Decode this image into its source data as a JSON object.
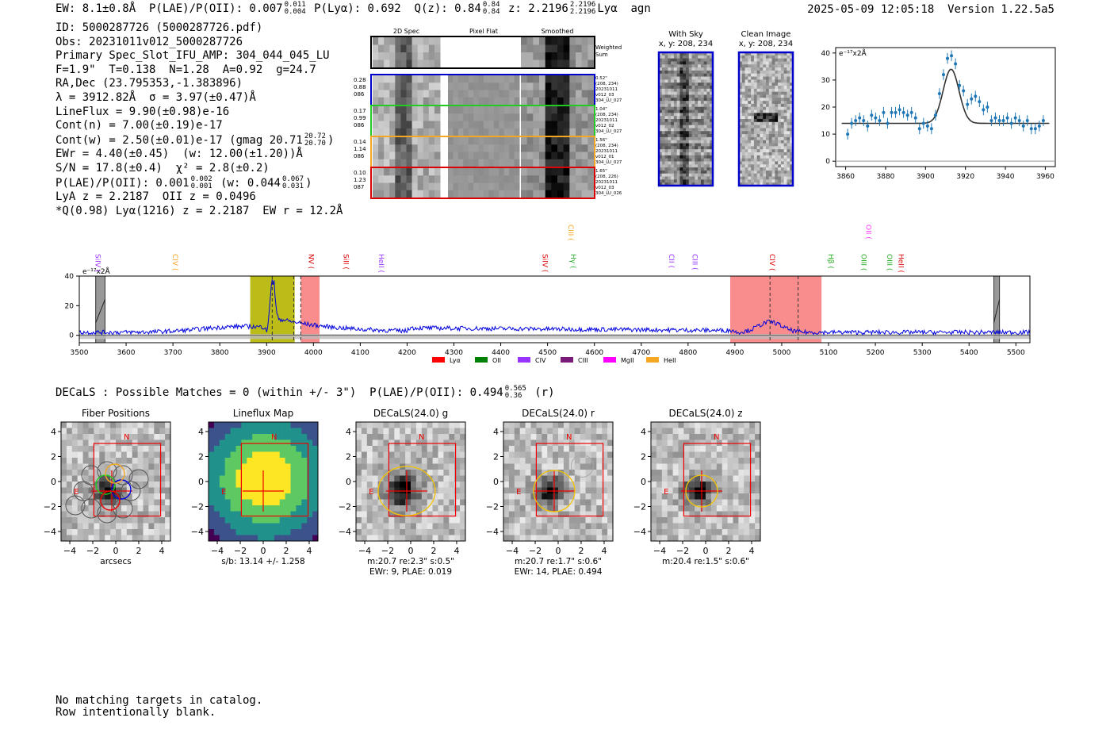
{
  "header": {
    "line": "EW: 8.1±0.8Å  P(LAE)/P(OII): 0.007",
    "plae_hi": "0.011",
    "plae_lo": "0.004",
    "plya": "P(Lyα): 0.692",
    "q": "Q(z): 0.84",
    "q_hi": "0.84",
    "q_lo": "0.84",
    "z": "z: 2.2196",
    "z_hi": "2.2196",
    "z_lo": "2.2196",
    "tail": "Lyα  agn",
    "timestamp": "2025-05-09 12:05:18  Version 1.22.5a5"
  },
  "info": {
    "id": "ID: 5000287726 (5000287726.pdf)",
    "obs": "Obs: 20231011v012_5000287726",
    "slot": "Primary Spec_Slot_IFU_AMP: 304_044_045_LU",
    "fwhm": "F=1.9\"  T=0.138  N=1.28  A=0.92  g=24.7",
    "radec": "RA,Dec (23.795353,-1.383896)",
    "lambda": "λ = 3912.82Å  σ = 3.97(±0.47)Å",
    "lineflux": "LineFlux = 9.90(±0.98)e-16",
    "contn": "Cont(n) = 7.00(±0.19)e-17",
    "contw": "Cont(w) = 2.50(±0.01)e-17 (gmag 20.71",
    "contw_hi": "20.72",
    "contw_lo": "20.70",
    "contw_end": ")",
    "ewr": "EWr = 4.40(±0.45)  (w: 12.00(±1.20))Å",
    "sn": "S/N = 17.8(±0.4)  χ² = 2.8(±0.2)",
    "plae2": "P(LAE)/P(OII): 0.001",
    "plae2_hi": "0.002",
    "plae2_lo": "0.001",
    "plae2_w": "(w: 0.044",
    "plae2_w_hi": "0.067",
    "plae2_w_lo": "0.031",
    "plae2_end": ")",
    "lya": "LyA z = 2.2187  OII z = 0.0496",
    "q2": "*Q(0.98) Lyα(1216) z = 2.2187  EW r = 12.2Å"
  },
  "cutouts": {
    "headers": [
      "2D Spec",
      "Pixel Flat",
      "Smoothed"
    ],
    "weighted": "Weighted Sum",
    "rows": [
      {
        "vals": [
          "0.28",
          "0.88",
          "086"
        ],
        "meta": [
          "0.52\"",
          "(208, 234)",
          "20231011",
          "v012_03",
          "304_LU_027"
        ],
        "color": "#0000cc"
      },
      {
        "vals": [
          "0.17",
          "0.99",
          "086"
        ],
        "meta": [
          "1.04\"",
          "(208, 234)",
          "20231011",
          "v012_02",
          "304_LU_027"
        ],
        "color": "#22cc22"
      },
      {
        "vals": [
          "0.14",
          "1.14",
          "086"
        ],
        "meta": [
          "1.56\"",
          "(208, 234)",
          "20231011",
          "v012_01",
          "304_LU_027"
        ],
        "color": "#f5a623"
      },
      {
        "vals": [
          "0.10",
          "1.23",
          "087"
        ],
        "meta": [
          "1.65\"",
          "(208, 226)",
          "20231011",
          "v012_03",
          "304_LU_026"
        ],
        "color": "#dd0000"
      }
    ]
  },
  "sky": {
    "with_sky": "With Sky",
    "clean": "Clean Image",
    "coords": "x, y: 208, 234"
  },
  "chart_data": [
    {
      "type": "scatter",
      "title": "",
      "ylabel": "e⁻¹⁷x2Å",
      "xlim": [
        3855,
        3965
      ],
      "ylim": [
        -2,
        42
      ],
      "xticks": [
        3860,
        3880,
        3900,
        3920,
        3940,
        3960
      ],
      "yticks": [
        0,
        10,
        20,
        30,
        40
      ],
      "points": [
        [
          3861,
          10,
          2
        ],
        [
          3863,
          14,
          2
        ],
        [
          3865,
          15,
          2
        ],
        [
          3867,
          16,
          2
        ],
        [
          3869,
          15,
          2
        ],
        [
          3871,
          13,
          2
        ],
        [
          3873,
          17,
          2
        ],
        [
          3875,
          16,
          2
        ],
        [
          3877,
          15,
          2
        ],
        [
          3879,
          18,
          2
        ],
        [
          3881,
          14,
          2
        ],
        [
          3883,
          18,
          2
        ],
        [
          3885,
          18,
          2
        ],
        [
          3887,
          19,
          2
        ],
        [
          3889,
          18,
          2
        ],
        [
          3891,
          17,
          2
        ],
        [
          3893,
          18,
          2
        ],
        [
          3895,
          16,
          2
        ],
        [
          3897,
          12,
          2
        ],
        [
          3899,
          14,
          2
        ],
        [
          3901,
          13,
          2
        ],
        [
          3903,
          12,
          2
        ],
        [
          3905,
          17,
          2
        ],
        [
          3907,
          25,
          2
        ],
        [
          3909,
          32,
          2
        ],
        [
          3911,
          38,
          2
        ],
        [
          3913,
          39,
          2
        ],
        [
          3915,
          36,
          2
        ],
        [
          3917,
          28,
          2
        ],
        [
          3919,
          26,
          2
        ],
        [
          3921,
          21,
          2
        ],
        [
          3923,
          23,
          2
        ],
        [
          3925,
          24,
          2
        ],
        [
          3927,
          22,
          2
        ],
        [
          3929,
          19,
          2
        ],
        [
          3931,
          20,
          2
        ],
        [
          3933,
          15,
          2
        ],
        [
          3935,
          16,
          2
        ],
        [
          3937,
          15,
          2
        ],
        [
          3939,
          15,
          2
        ],
        [
          3941,
          16,
          2
        ],
        [
          3943,
          14,
          2
        ],
        [
          3945,
          16,
          2
        ],
        [
          3947,
          15,
          2
        ],
        [
          3949,
          13,
          2
        ],
        [
          3951,
          15,
          2
        ],
        [
          3953,
          12,
          2
        ],
        [
          3955,
          12,
          2
        ],
        [
          3957,
          13,
          2
        ],
        [
          3959,
          15,
          2
        ]
      ],
      "fit": {
        "center": 3912.8,
        "sigma": 3.97,
        "amp": 20,
        "base": 14
      }
    },
    {
      "type": "line",
      "ylabel": "e⁻¹⁷x2Å",
      "xlim": [
        3500,
        5530
      ],
      "ylim": [
        -5,
        40
      ],
      "xticks": [
        3500,
        3600,
        3700,
        3800,
        3900,
        4000,
        4100,
        4200,
        4300,
        4400,
        4500,
        4600,
        4700,
        4800,
        4900,
        5000,
        5100,
        5200,
        5300,
        5400,
        5500
      ],
      "yticks": [
        0,
        20,
        40
      ],
      "shaded": [
        {
          "x0": 3865,
          "x1": 3960,
          "color": "#b5b500"
        },
        {
          "x0": 3973,
          "x1": 4013,
          "color": "#f88080"
        },
        {
          "x0": 4890,
          "x1": 5085,
          "color": "#f88080"
        }
      ],
      "hatched": [
        [
          3535,
          3555
        ],
        [
          5453,
          5465
        ]
      ],
      "dashed": [
        3912,
        3958,
        3973,
        4975,
        5035
      ],
      "lines": [
        {
          "label": "SiIV",
          "x": 3535,
          "color": "#9933ff",
          "level": 1
        },
        {
          "label": "CIV",
          "x": 3700,
          "color": "#f5a623",
          "level": 1
        },
        {
          "label": "NV",
          "x": 3990,
          "color": "#dd0000",
          "level": 1
        },
        {
          "label": "SiII",
          "x": 4065,
          "color": "#dd0000",
          "level": 1
        },
        {
          "label": "HeII",
          "x": 4140,
          "color": "#9933ff",
          "level": 1
        },
        {
          "label": "SiIV",
          "x": 4490,
          "color": "#dd0000",
          "level": 1
        },
        {
          "label": "CIII",
          "x": 4545,
          "color": "#f5a623",
          "level": 0
        },
        {
          "label": "Hγ",
          "x": 4550,
          "color": "#22aa22",
          "level": 1
        },
        {
          "label": "CII",
          "x": 4760,
          "color": "#9933ff",
          "level": 1
        },
        {
          "label": "CIII",
          "x": 4810,
          "color": "#9933ff",
          "level": 1
        },
        {
          "label": "CIV",
          "x": 4975,
          "color": "#dd0000",
          "level": 1
        },
        {
          "label": "Hβ",
          "x": 5100,
          "color": "#22aa22",
          "level": 1
        },
        {
          "label": "OII",
          "x": 5180,
          "color": "#ff33ff",
          "level": 0
        },
        {
          "label": "OIII",
          "x": 5170,
          "color": "#22aa22",
          "level": 1
        },
        {
          "label": "OIII",
          "x": 5225,
          "color": "#22aa22",
          "level": 1
        },
        {
          "label": "HeII",
          "x": 5250,
          "color": "#dd0000",
          "level": 1
        }
      ],
      "legend": [
        {
          "label": "Lyα",
          "color": "#ff0000"
        },
        {
          "label": "OII",
          "color": "#008000"
        },
        {
          "label": "CIV",
          "color": "#9933ff"
        },
        {
          "label": "CIII",
          "color": "#7b1a7b"
        },
        {
          "label": "MgII",
          "color": "#ff00ff"
        },
        {
          "label": "HeII",
          "color": "#f5a623"
        }
      ]
    }
  ],
  "decals": {
    "line": "DECaLS : Possible Matches = 0 (within +/- 3\")  P(LAE)/P(OII): 0.494",
    "hi": "0.565",
    "lo": "0.36",
    "tail": "(r)",
    "panels": [
      {
        "title": "Fiber Positions",
        "cap1": "arcsecs",
        "cap2": "",
        "kind": "fiber"
      },
      {
        "title": "Lineflux Map",
        "cap1": "s/b: 13.14 +/- 1.258",
        "cap2": "",
        "kind": "flux"
      },
      {
        "title": "DECaLS(24.0) g",
        "cap1": "m:20.7  re:2.3\"  s:0.5\"",
        "cap2": "EWr: 9, PLAE: 0.019",
        "kind": "g"
      },
      {
        "title": "DECaLS(24.0) r",
        "cap1": "m:20.7  re:1.7\"  s:0.6\"",
        "cap2": "EWr: 14, PLAE: 0.494",
        "kind": "r"
      },
      {
        "title": "DECaLS(24.0) z",
        "cap1": "m:20.4  re:1.5\"  s:0.6\"",
        "cap2": "",
        "kind": "z"
      }
    ],
    "ticks": [
      "4",
      "2",
      "0",
      "−2",
      "−4"
    ],
    "xticks": [
      "−4",
      "−2",
      "0",
      "2",
      "4"
    ],
    "north": "N",
    "east": "E"
  },
  "footer": [
    "No matching targets in catalog.",
    "Row intentionally blank."
  ]
}
